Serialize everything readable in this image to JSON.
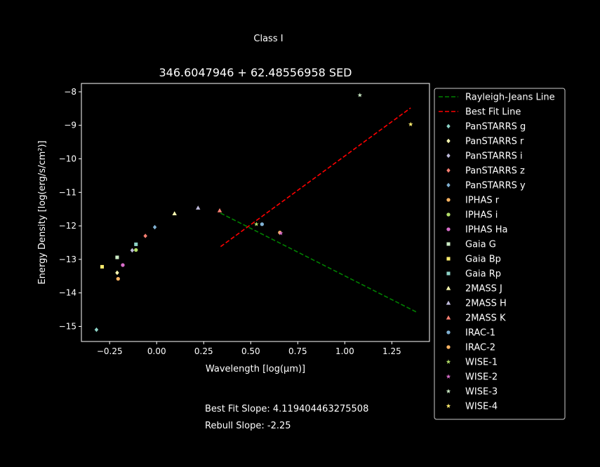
{
  "figure": {
    "suptitle": "Class I",
    "notes": [
      "Best Fit Slope: 4.119404463275508",
      "Rebull Slope: -2.25"
    ]
  },
  "chart_data": {
    "type": "scatter",
    "title": "346.6047946 + 62.48556958 SED",
    "xlabel": "Wavelength [log(μm)]",
    "ylabel": "Energy Density [log(erg/s/cm²)]",
    "xlim": [
      -0.4,
      1.45
    ],
    "ylim": [
      -15.45,
      -7.75
    ],
    "xticks": [
      -0.25,
      0.0,
      0.25,
      0.5,
      0.75,
      1.0,
      1.25
    ],
    "xtick_labels": [
      "−0.25",
      "0.00",
      "0.25",
      "0.50",
      "0.75",
      "1.00",
      "1.25"
    ],
    "yticks": [
      -15,
      -14,
      -13,
      -12,
      -11,
      -10,
      -9,
      -8
    ],
    "ytick_labels": [
      "−15",
      "−14",
      "−13",
      "−12",
      "−11",
      "−10",
      "−9",
      "−8"
    ],
    "grid": false,
    "legend_position": "outside-right",
    "lines": [
      {
        "name": "Rayleigh-Jeans Line",
        "color": "#008000",
        "style": "dashed",
        "x": [
          0.34,
          1.38
        ],
        "y": [
          -11.62,
          -14.57
        ]
      },
      {
        "name": "Best Fit Line",
        "color": "#ff0000",
        "style": "dashed",
        "x": [
          0.34,
          1.35
        ],
        "y": [
          -12.62,
          -8.48
        ]
      }
    ],
    "series": [
      {
        "name": "PanSTARRS g",
        "color": "#8dd3c7",
        "marker": "diamond",
        "points": [
          [
            -0.32,
            -15.1
          ]
        ]
      },
      {
        "name": "PanSTARRS r",
        "color": "#ffffb3",
        "marker": "diamond",
        "points": [
          [
            -0.21,
            -13.4
          ]
        ]
      },
      {
        "name": "PanSTARRS i",
        "color": "#bebada",
        "marker": "diamond",
        "points": [
          [
            -0.13,
            -12.73
          ]
        ]
      },
      {
        "name": "PanSTARRS z",
        "color": "#fb8072",
        "marker": "diamond",
        "points": [
          [
            -0.06,
            -12.3
          ]
        ]
      },
      {
        "name": "PanSTARRS y",
        "color": "#80b1d3",
        "marker": "diamond",
        "points": [
          [
            -0.01,
            -12.04
          ]
        ]
      },
      {
        "name": "IPHAS r",
        "color": "#fdb462",
        "marker": "circle",
        "points": [
          [
            -0.205,
            -13.58
          ]
        ]
      },
      {
        "name": "IPHAS i",
        "color": "#b3de69",
        "marker": "circle",
        "points": [
          [
            -0.11,
            -12.72
          ]
        ]
      },
      {
        "name": "IPHAS Ha",
        "color": "#d96ecb",
        "marker": "circle",
        "points": [
          [
            -0.18,
            -13.17
          ]
        ]
      },
      {
        "name": "Gaia G",
        "color": "#ccebc5",
        "marker": "square",
        "points": [
          [
            -0.21,
            -12.94
          ]
        ]
      },
      {
        "name": "Gaia Bp",
        "color": "#ffed6f",
        "marker": "square",
        "points": [
          [
            -0.29,
            -13.22
          ]
        ]
      },
      {
        "name": "Gaia Rp",
        "color": "#8dd3c7",
        "marker": "square",
        "points": [
          [
            -0.11,
            -12.55
          ]
        ]
      },
      {
        "name": "2MASS J",
        "color": "#ffffb3",
        "marker": "triangle",
        "points": [
          [
            0.095,
            -11.63
          ]
        ]
      },
      {
        "name": "2MASS H",
        "color": "#bebada",
        "marker": "triangle",
        "points": [
          [
            0.22,
            -11.46
          ]
        ]
      },
      {
        "name": "2MASS K",
        "color": "#fb8072",
        "marker": "triangle",
        "points": [
          [
            0.335,
            -11.54
          ]
        ]
      },
      {
        "name": "IRAC-1",
        "color": "#80b1d3",
        "marker": "circle",
        "points": [
          [
            0.56,
            -11.95
          ]
        ]
      },
      {
        "name": "IRAC-2",
        "color": "#fdb462",
        "marker": "circle",
        "points": [
          [
            0.655,
            -12.2
          ]
        ]
      },
      {
        "name": "WISE-1",
        "color": "#b3de69",
        "marker": "star",
        "points": [
          [
            0.53,
            -11.95
          ]
        ]
      },
      {
        "name": "WISE-2",
        "color": "#d96ecb",
        "marker": "star",
        "points": [
          [
            0.66,
            -12.22
          ]
        ]
      },
      {
        "name": "WISE-3",
        "color": "#ccebc5",
        "marker": "star",
        "points": [
          [
            1.08,
            -8.1
          ]
        ]
      },
      {
        "name": "WISE-4",
        "color": "#ffed6f",
        "marker": "star",
        "points": [
          [
            1.35,
            -8.97
          ]
        ]
      }
    ]
  }
}
